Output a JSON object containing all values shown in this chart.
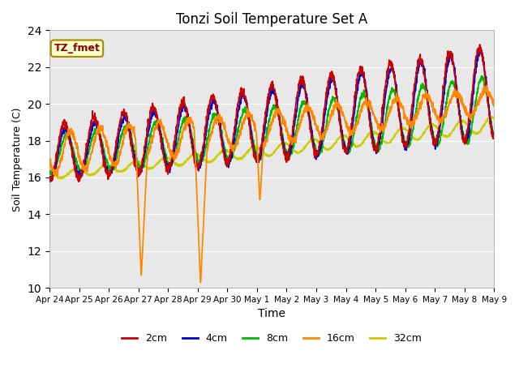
{
  "title": "Tonzi Soil Temperature Set A",
  "xlabel": "Time",
  "ylabel": "Soil Temperature (C)",
  "ylim": [
    10,
    24
  ],
  "yticks": [
    10,
    12,
    14,
    16,
    18,
    20,
    22,
    24
  ],
  "colors": {
    "2cm": "#cc0000",
    "4cm": "#0000cc",
    "8cm": "#00bb00",
    "16cm": "#ff8800",
    "32cm": "#cccc00"
  },
  "annotation_text": "TZ_fmet",
  "annotation_color": "#880000",
  "annotation_bg": "#ffffcc",
  "annotation_edge": "#aa8800",
  "bg_color": "#e8e8e8",
  "grid_color": "#ffffff",
  "day_labels": [
    "Apr 24",
    "Apr 25",
    "Apr 26",
    "Apr 27",
    "Apr 28",
    "Apr 29",
    "Apr 30",
    "May 1",
    "May 2",
    "May 3",
    "May 4",
    "May 5",
    "May 6",
    "May 7",
    "May 8",
    "May 9"
  ],
  "n_per_day": 144,
  "n_days": 15
}
